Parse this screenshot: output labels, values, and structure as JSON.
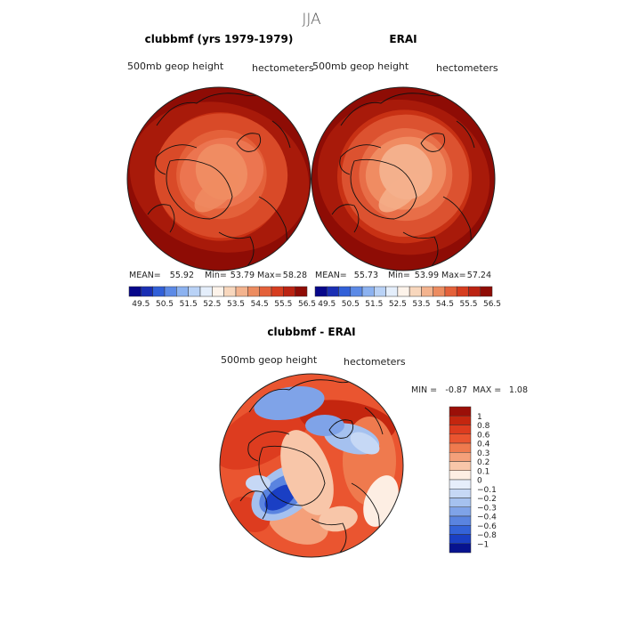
{
  "page_title": "JJA",
  "chart_data": [
    {
      "type": "heatmap",
      "projection": "north-polar-stereographic",
      "title": "clubbmf (yrs 1979-1979)",
      "left_label": "500mb geop height",
      "right_label": "hectometers",
      "stats": {
        "mean_label": "MEAN=",
        "mean": "55.92",
        "min_label": "Min=",
        "min": "53.79",
        "max_label": "Max=",
        "max": "58.28"
      },
      "colorbar": {
        "orientation": "horizontal",
        "levels": [
          "49.5",
          "50.5",
          "51.5",
          "52.5",
          "53.5",
          "54.5",
          "55.5",
          "56.5"
        ],
        "colors": [
          "#07078a",
          "#1a2fb4",
          "#3160d8",
          "#5c8ae6",
          "#8cb2f0",
          "#b9d2f6",
          "#e4eefb",
          "#fdf3ea",
          "#f8d7bd",
          "#f3b38e",
          "#ec8c60",
          "#e4613a",
          "#d63d1f",
          "#bb2312",
          "#8f0c06"
        ]
      },
      "field_range": [
        53.79,
        58.28
      ],
      "field_colors": [
        "#f08c62",
        "#ec7550",
        "#e4613a",
        "#d94a28",
        "#c83114",
        "#a81a0a",
        "#8e0c05"
      ]
    },
    {
      "type": "heatmap",
      "projection": "north-polar-stereographic",
      "title": "ERAI",
      "left_label": "500mb geop height",
      "right_label": "hectometers",
      "stats": {
        "mean_label": "MEAN=",
        "mean": "55.73",
        "min_label": "Min=",
        "min": "53.99",
        "max_label": "Max=",
        "max": "57.24"
      },
      "colorbar": {
        "orientation": "horizontal",
        "levels": [
          "49.5",
          "50.5",
          "51.5",
          "52.5",
          "53.5",
          "54.5",
          "55.5",
          "56.5"
        ],
        "colors": [
          "#07078a",
          "#1a2fb4",
          "#3160d8",
          "#5c8ae6",
          "#8cb2f0",
          "#b9d2f6",
          "#e4eefb",
          "#fdf3ea",
          "#f8d7bd",
          "#f3b38e",
          "#ec8c60",
          "#e4613a",
          "#d63d1f",
          "#bb2312",
          "#8f0c06"
        ]
      },
      "field_range": [
        53.99,
        57.24
      ],
      "field_colors": [
        "#f4b08c",
        "#f08c62",
        "#e86e48",
        "#dc5230",
        "#c83114",
        "#a81a0a",
        "#8e0c05"
      ]
    },
    {
      "type": "heatmap",
      "projection": "north-polar-stereographic",
      "title": "clubbmf - ERAI",
      "left_label": "500mb geop height",
      "right_label": "hectometers",
      "stats": {
        "min_label": "MIN =",
        "min": "-0.87",
        "max_label": "MAX =",
        "max": "1.08"
      },
      "colorbar": {
        "orientation": "vertical",
        "levels": [
          "1",
          "0.8",
          "0.6",
          "0.4",
          "0.3",
          "0.2",
          "0.1",
          "0",
          "−0.1",
          "−0.2",
          "−0.3",
          "−0.4",
          "−0.6",
          "−0.8",
          "−1"
        ],
        "colors": [
          "#9b0f08",
          "#c4260f",
          "#dd3c1f",
          "#ea5530",
          "#ef7a4e",
          "#f4a07a",
          "#f8c6a9",
          "#fdeee3",
          "#e6eefb",
          "#c6d8f5",
          "#a5c1ef",
          "#7fa3e8",
          "#5a84e0",
          "#3463d8",
          "#1a3fc4",
          "#07138f"
        ]
      },
      "field_range": [
        -0.87,
        1.08
      ]
    }
  ]
}
